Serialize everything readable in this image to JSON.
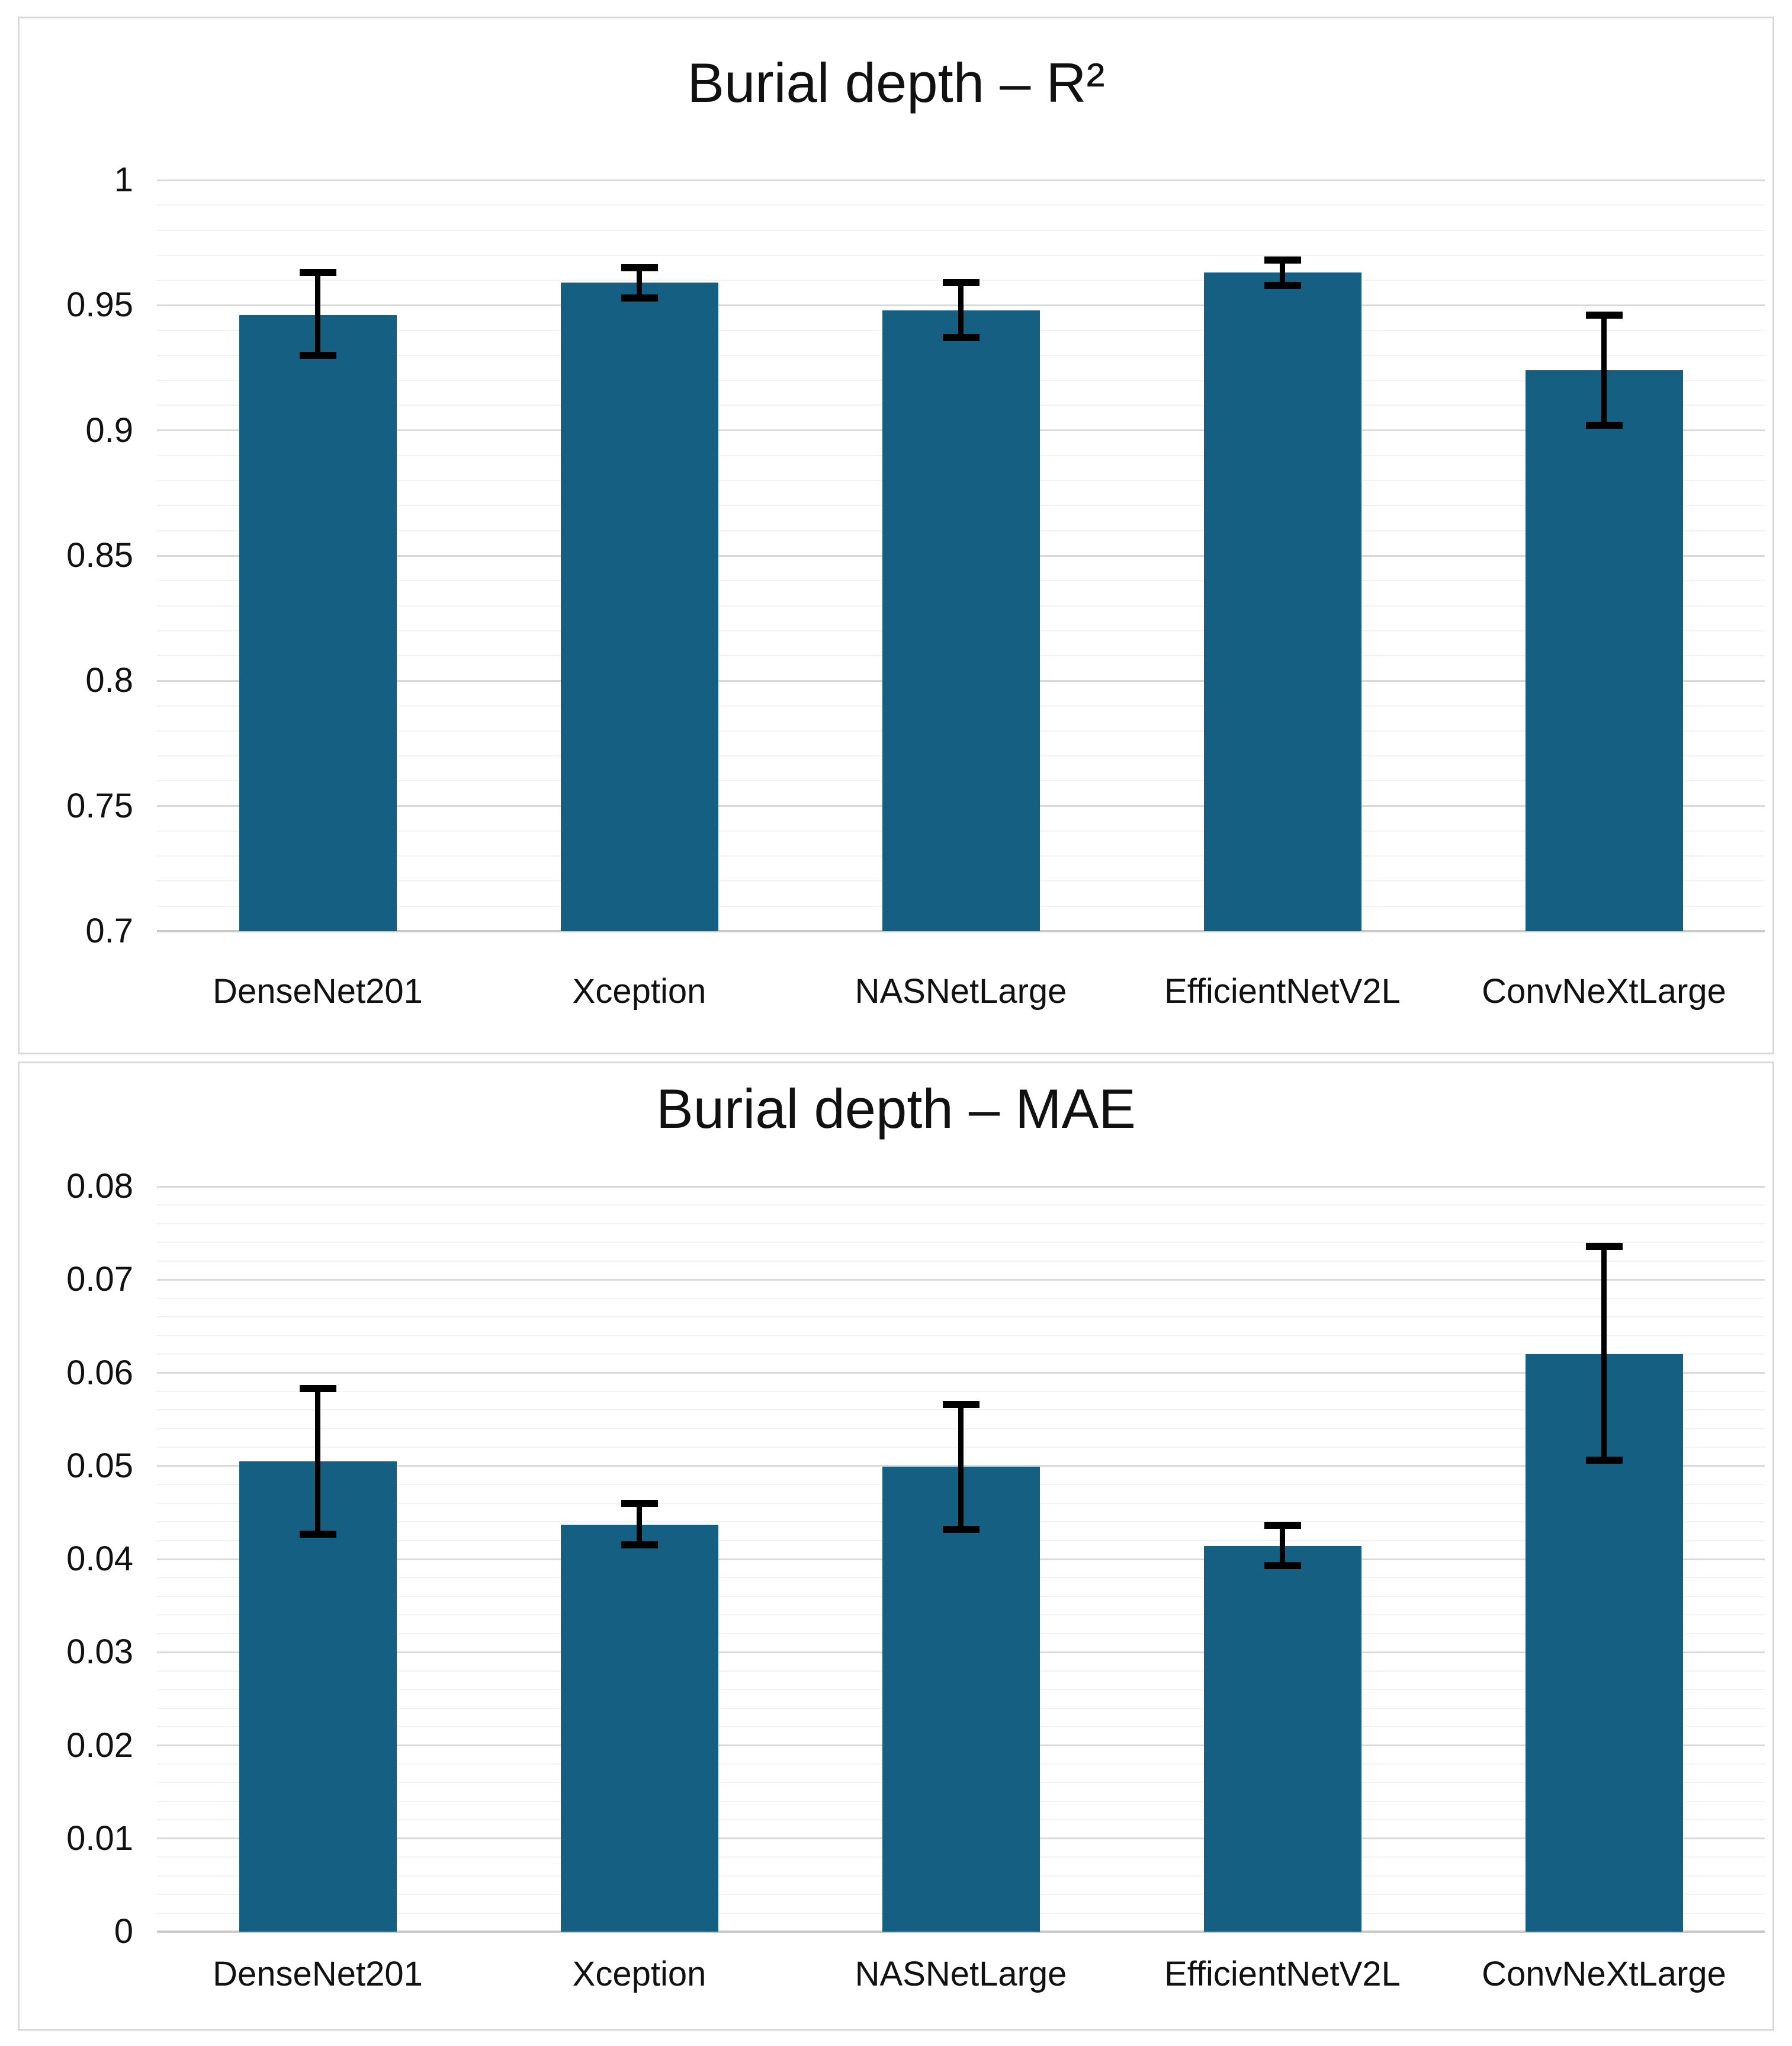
{
  "colors": {
    "background": "#ffffff",
    "panel_border": "#d9d9d9",
    "bar_fill": "#156082",
    "error_bar": "#000000",
    "gridline_major": "#d9d9d9",
    "gridline_minor": "#f2f2f2",
    "axis_baseline": "#c9c9c9",
    "text": "#111111"
  },
  "chart_data": [
    {
      "type": "bar",
      "title": "Burial depth – R²",
      "xlabel": "",
      "ylabel": "",
      "legend": "none",
      "grid": true,
      "categories": [
        "DenseNet201",
        "Xception",
        "NASNetLarge",
        "EfficientNetV2L",
        "ConvNeXtLarge"
      ],
      "values": [
        0.946,
        0.959,
        0.948,
        0.963,
        0.924
      ],
      "error_low": [
        0.93,
        0.953,
        0.937,
        0.958,
        0.902
      ],
      "error_high": [
        0.963,
        0.965,
        0.959,
        0.968,
        0.946
      ],
      "ylim": [
        0.7,
        1.0
      ],
      "minor_gridline_step": 0.01,
      "yticks": [
        {
          "value": 1.0,
          "label": "1"
        },
        {
          "value": 0.95,
          "label": "0.95"
        },
        {
          "value": 0.9,
          "label": "0.9"
        },
        {
          "value": 0.85,
          "label": "0.85"
        },
        {
          "value": 0.8,
          "label": "0.8"
        },
        {
          "value": 0.75,
          "label": "0.75"
        },
        {
          "value": 0.7,
          "label": "0.7"
        }
      ]
    },
    {
      "type": "bar",
      "title": "Burial depth – MAE",
      "xlabel": "",
      "ylabel": "",
      "legend": "none",
      "grid": true,
      "categories": [
        "DenseNet201",
        "Xception",
        "NASNetLarge",
        "EfficientNetV2L",
        "ConvNeXtLarge"
      ],
      "values": [
        0.0505,
        0.0437,
        0.0499,
        0.0414,
        0.062
      ],
      "error_low": [
        0.0427,
        0.0415,
        0.0432,
        0.0393,
        0.0506
      ],
      "error_high": [
        0.0583,
        0.046,
        0.0566,
        0.0436,
        0.0736
      ],
      "ylim": [
        0,
        0.08
      ],
      "minor_gridline_step": 0.002,
      "yticks": [
        {
          "value": 0.08,
          "label": "0.08"
        },
        {
          "value": 0.07,
          "label": "0.07"
        },
        {
          "value": 0.06,
          "label": "0.06"
        },
        {
          "value": 0.05,
          "label": "0.05"
        },
        {
          "value": 0.04,
          "label": "0.04"
        },
        {
          "value": 0.03,
          "label": "0.03"
        },
        {
          "value": 0.02,
          "label": "0.02"
        },
        {
          "value": 0.01,
          "label": "0.01"
        },
        {
          "value": 0,
          "label": "0"
        }
      ]
    }
  ]
}
